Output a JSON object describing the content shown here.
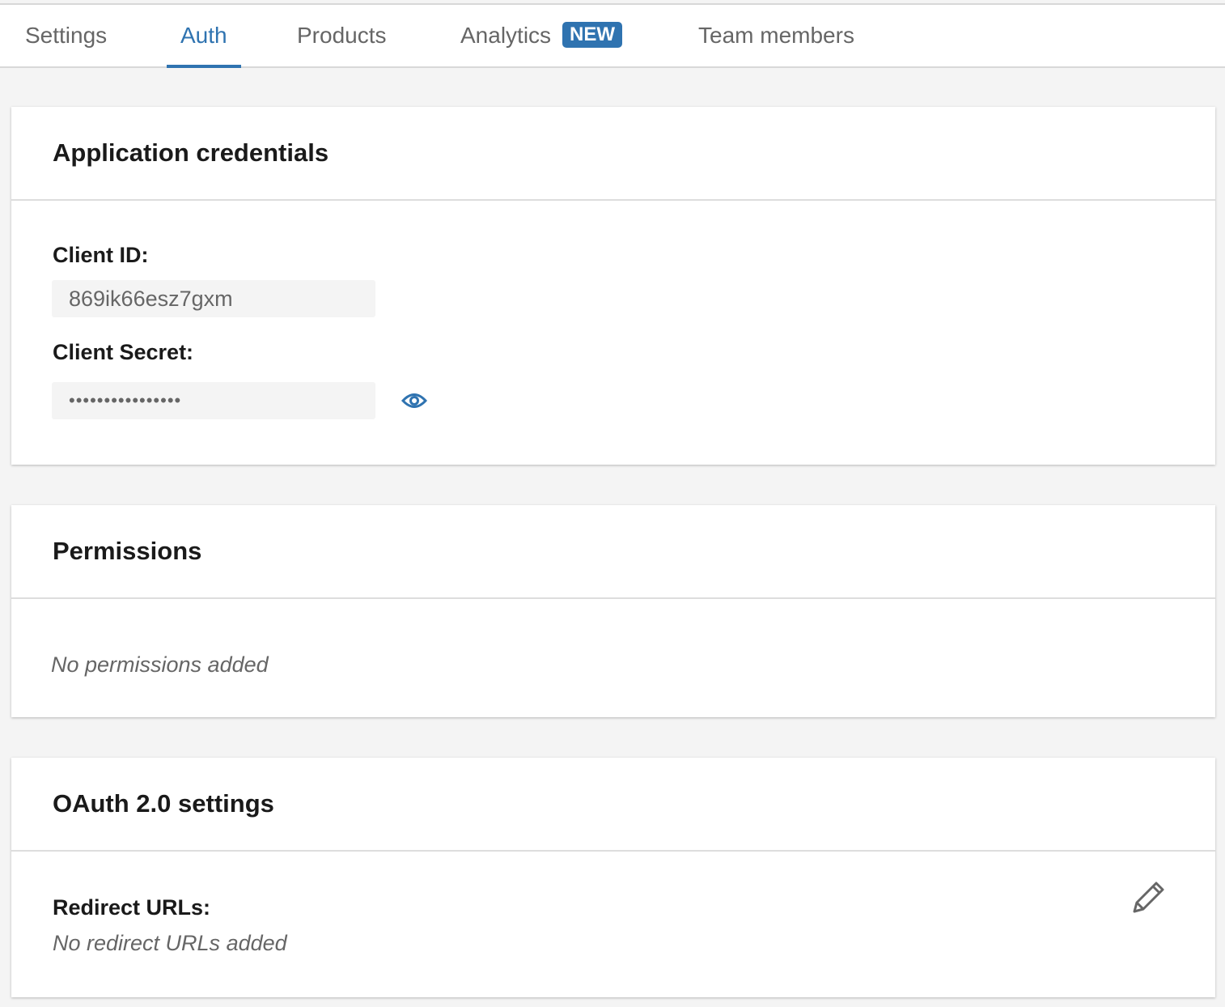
{
  "tabs": [
    {
      "label": "Settings"
    },
    {
      "label": "Auth",
      "active": true
    },
    {
      "label": "Products"
    },
    {
      "label": "Analytics",
      "badge": "NEW"
    },
    {
      "label": "Team members"
    }
  ],
  "accent": "#2f73b0",
  "credentials": {
    "title": "Application credentials",
    "client_id_label": "Client ID:",
    "client_id": "869ik66esz7gxm",
    "client_secret_label": "Client Secret:",
    "client_secret_masked": "••••••••••••••••",
    "reveal_icon": "eye-icon"
  },
  "permissions": {
    "title": "Permissions",
    "empty": "No permissions added"
  },
  "oauth": {
    "title": "OAuth 2.0 settings",
    "redirect_label": "Redirect URLs:",
    "redirect_empty": "No redirect URLs added",
    "edit_icon": "pencil-icon"
  }
}
